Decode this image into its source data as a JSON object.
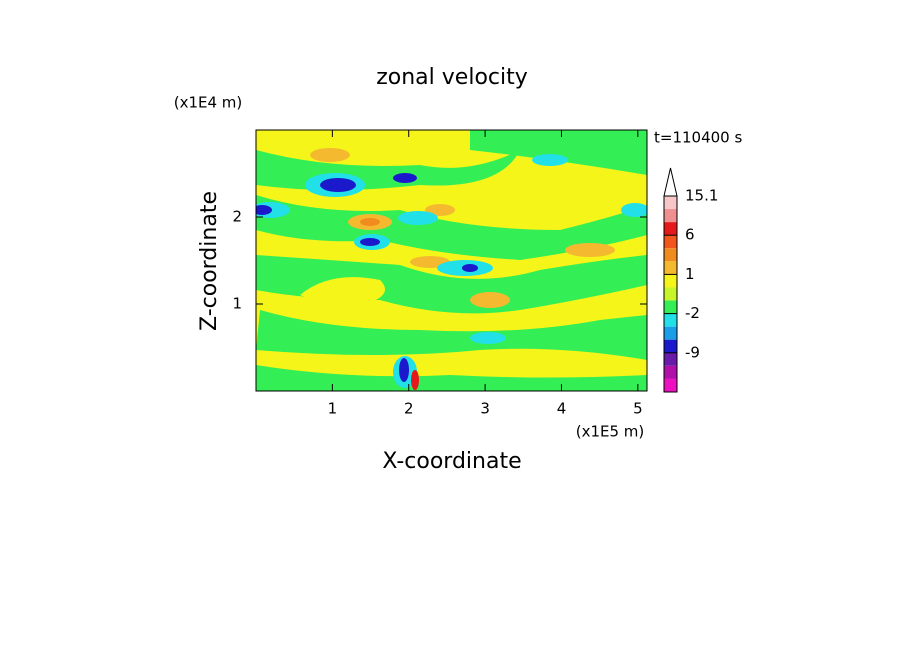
{
  "chart_data": {
    "type": "contour",
    "title": "zonal velocity",
    "x_label": "X-coordinate",
    "y_label": "Z-coordinate",
    "x_unit": "(x1E5 m)",
    "y_unit": "(x1E4 m)",
    "annotation": "t=110400 s",
    "xlim": [
      0,
      5.12
    ],
    "xticks": [
      1,
      2,
      3,
      4,
      5
    ],
    "ylim": [
      0,
      3.0
    ],
    "yticks": [
      1,
      2
    ],
    "colorbar": {
      "levels": [
        15.1,
        12,
        9,
        6,
        3,
        2,
        1,
        0,
        -1,
        -2,
        -3,
        -6,
        -9,
        -12,
        -15,
        -18
      ],
      "ticks": [
        15.1,
        6,
        1,
        -2,
        -9
      ],
      "colors": [
        "#f7c6c6",
        "#ef8f8f",
        "#e5191a",
        "#f2561c",
        "#f08c1e",
        "#f5b930",
        "#f5f51a",
        "#c8f52a",
        "#33ee55",
        "#22e0e8",
        "#1a9ee8",
        "#1a1acc",
        "#6a1aa8",
        "#b010a8",
        "#ee10c0"
      ]
    }
  }
}
